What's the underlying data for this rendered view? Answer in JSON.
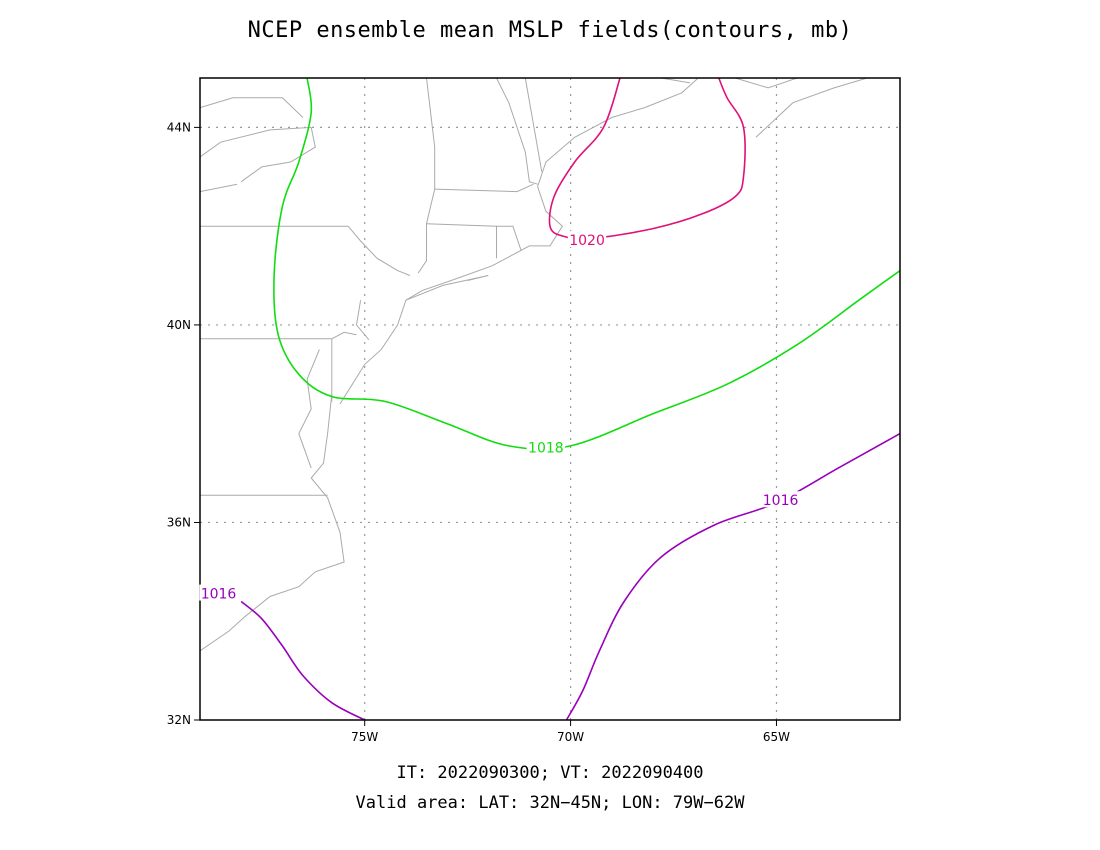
{
  "title": "NCEP ensemble mean MSLP fields(contours, mb)",
  "footer": {
    "line1": "IT: 2022090300; VT: 2022090400",
    "line2": "Valid area: LAT: 32N−45N; LON: 79W−62W"
  },
  "chart_data": {
    "type": "contour-map",
    "title": "NCEP ensemble mean MSLP fields(contours, mb)",
    "units": "mb",
    "lat_range": [
      32,
      45
    ],
    "lon_range": [
      -79,
      -62
    ],
    "grid": true,
    "y_ticks": [
      {
        "value": 32,
        "label": "32N"
      },
      {
        "value": 36,
        "label": "36N"
      },
      {
        "value": 40,
        "label": "40N"
      },
      {
        "value": 44,
        "label": "44N"
      }
    ],
    "x_ticks": [
      {
        "value": -75,
        "label": "75W"
      },
      {
        "value": -70,
        "label": "70W"
      },
      {
        "value": -65,
        "label": "65W"
      }
    ],
    "contours": [
      {
        "level": 1020,
        "label": "1020",
        "color": "#e0107a",
        "label_at": [
          -69.6,
          41.72
        ],
        "points": [
          [
            -68.8,
            45.0
          ],
          [
            -69.2,
            44.0
          ],
          [
            -69.9,
            43.3
          ],
          [
            -70.4,
            42.6
          ],
          [
            -70.5,
            42.0
          ],
          [
            -70.2,
            41.8
          ],
          [
            -69.5,
            41.75
          ],
          [
            -68.0,
            41.95
          ],
          [
            -66.8,
            42.25
          ],
          [
            -66.0,
            42.6
          ],
          [
            -65.8,
            43.0
          ],
          [
            -65.8,
            44.0
          ],
          [
            -66.2,
            44.6
          ],
          [
            -66.4,
            45.0
          ]
        ]
      },
      {
        "level": 1018,
        "label": "1018",
        "color": "#10dd10",
        "label_at": [
          -70.6,
          37.52
        ],
        "points": [
          [
            -76.4,
            45.0
          ],
          [
            -76.3,
            44.3
          ],
          [
            -76.6,
            43.3
          ],
          [
            -77.0,
            42.4
          ],
          [
            -77.2,
            41.0
          ],
          [
            -77.1,
            39.8
          ],
          [
            -76.6,
            39.0
          ],
          [
            -75.8,
            38.55
          ],
          [
            -74.5,
            38.45
          ],
          [
            -73.0,
            38.0
          ],
          [
            -71.5,
            37.55
          ],
          [
            -70.0,
            37.55
          ],
          [
            -68.0,
            38.2
          ],
          [
            -66.2,
            38.8
          ],
          [
            -64.5,
            39.6
          ],
          [
            -63.0,
            40.5
          ],
          [
            -62.0,
            41.1
          ]
        ]
      },
      {
        "level": 1016,
        "label": "1016",
        "color": "#9900bb",
        "label_at": [
          -64.9,
          36.45
        ],
        "points": [
          [
            -62.0,
            37.8
          ],
          [
            -63.5,
            37.1
          ],
          [
            -65.0,
            36.4
          ],
          [
            -66.5,
            35.95
          ],
          [
            -67.8,
            35.3
          ],
          [
            -68.7,
            34.4
          ],
          [
            -69.3,
            33.4
          ],
          [
            -69.7,
            32.6
          ],
          [
            -70.1,
            32.0
          ]
        ]
      },
      {
        "level": 1016,
        "label": "1016",
        "color": "#9900bb",
        "label_at": [
          -78.55,
          34.56
        ],
        "points": [
          [
            -78.0,
            34.4
          ],
          [
            -77.5,
            34.05
          ],
          [
            -77.0,
            33.5
          ],
          [
            -76.5,
            32.9
          ],
          [
            -75.8,
            32.35
          ],
          [
            -75.0,
            32.0
          ]
        ]
      }
    ],
    "coastlines": [
      [
        [
          -75.6,
          38.4
        ],
        [
          -75.3,
          38.8
        ],
        [
          -75.0,
          39.2
        ],
        [
          -74.6,
          39.5
        ],
        [
          -74.2,
          40.0
        ],
        [
          -74.0,
          40.5
        ],
        [
          -73.6,
          40.7
        ],
        [
          -72.9,
          40.9
        ],
        [
          -71.9,
          41.2
        ],
        [
          -71.0,
          41.6
        ],
        [
          -70.5,
          41.6
        ],
        [
          -70.2,
          42.0
        ],
        [
          -70.6,
          42.3
        ],
        [
          -70.8,
          42.8
        ],
        [
          -70.6,
          43.3
        ],
        [
          -69.9,
          43.8
        ],
        [
          -69.0,
          44.2
        ],
        [
          -68.2,
          44.4
        ],
        [
          -67.3,
          44.7
        ],
        [
          -66.9,
          45.0
        ]
      ],
      [
        [
          -75.8,
          38.6
        ],
        [
          -75.9,
          37.8
        ],
        [
          -76.0,
          37.2
        ],
        [
          -76.3,
          36.9
        ],
        [
          -75.9,
          36.5
        ],
        [
          -75.6,
          35.8
        ],
        [
          -75.5,
          35.2
        ],
        [
          -76.2,
          35.0
        ],
        [
          -76.6,
          34.7
        ],
        [
          -77.3,
          34.5
        ],
        [
          -77.9,
          34.1
        ],
        [
          -78.3,
          33.8
        ],
        [
          -79.0,
          33.4
        ]
      ],
      [
        [
          -76.1,
          39.5
        ],
        [
          -76.4,
          38.9
        ],
        [
          -76.3,
          38.3
        ],
        [
          -76.6,
          37.8
        ],
        [
          -76.3,
          37.1
        ]
      ],
      [
        [
          -74.0,
          40.5
        ],
        [
          -73.1,
          40.8
        ],
        [
          -72.0,
          41.0
        ],
        [
          -72.5,
          40.9
        ]
      ],
      [
        [
          -75.1,
          40.5
        ],
        [
          -75.2,
          40.0
        ],
        [
          -74.9,
          39.7
        ]
      ],
      [
        [
          -65.5,
          43.8
        ],
        [
          -64.6,
          44.5
        ],
        [
          -63.6,
          44.8
        ],
        [
          -62.8,
          45.0
        ]
      ],
      [
        [
          -66.0,
          45.0
        ],
        [
          -65.2,
          44.8
        ],
        [
          -64.5,
          45.0
        ]
      ]
    ],
    "borders": [
      [
        [
          -79.0,
          39.72
        ],
        [
          -75.8,
          39.72
        ]
      ],
      [
        [
          -79.0,
          42.0
        ],
        [
          -75.4,
          42.0
        ],
        [
          -75.1,
          41.7
        ],
        [
          -74.7,
          41.35
        ],
        [
          -74.2,
          41.1
        ],
        [
          -73.9,
          41.0
        ]
      ],
      [
        [
          -75.8,
          39.72
        ],
        [
          -75.8,
          38.45
        ]
      ],
      [
        [
          -75.8,
          39.72
        ],
        [
          -75.5,
          39.85
        ],
        [
          -75.2,
          39.8
        ]
      ],
      [
        [
          -79.0,
          36.55
        ],
        [
          -75.9,
          36.55
        ]
      ],
      [
        [
          -73.5,
          45.0
        ],
        [
          -73.3,
          43.6
        ],
        [
          -73.3,
          42.75
        ],
        [
          -73.5,
          42.05
        ],
        [
          -73.5,
          41.3
        ],
        [
          -73.7,
          41.05
        ]
      ],
      [
        [
          -71.8,
          45.0
        ],
        [
          -71.5,
          44.5
        ],
        [
          -71.1,
          43.5
        ],
        [
          -71.0,
          42.9
        ],
        [
          -70.8,
          42.85
        ]
      ],
      [
        [
          -73.3,
          42.75
        ],
        [
          -71.3,
          42.7
        ],
        [
          -70.9,
          42.85
        ]
      ],
      [
        [
          -73.5,
          42.05
        ],
        [
          -71.8,
          42.0
        ],
        [
          -71.8,
          41.35
        ]
      ],
      [
        [
          -71.8,
          42.0
        ],
        [
          -71.4,
          42.0
        ],
        [
          -71.2,
          41.5
        ]
      ],
      [
        [
          -71.1,
          45.0
        ],
        [
          -70.7,
          43.1
        ]
      ],
      [
        [
          -67.8,
          45.0
        ],
        [
          -67.1,
          44.9
        ]
      ],
      [
        [
          -78.0,
          42.9
        ],
        [
          -77.5,
          43.2
        ],
        [
          -76.8,
          43.3
        ],
        [
          -76.2,
          43.6
        ],
        [
          -76.3,
          44.0
        ],
        [
          -77.3,
          43.95
        ],
        [
          -78.5,
          43.7
        ],
        [
          -79.0,
          43.4
        ]
      ],
      [
        [
          -79.0,
          42.7
        ],
        [
          -78.1,
          42.85
        ]
      ],
      [
        [
          -76.5,
          44.2
        ],
        [
          -77.0,
          44.6
        ],
        [
          -78.2,
          44.6
        ],
        [
          -79.0,
          44.4
        ]
      ]
    ]
  }
}
